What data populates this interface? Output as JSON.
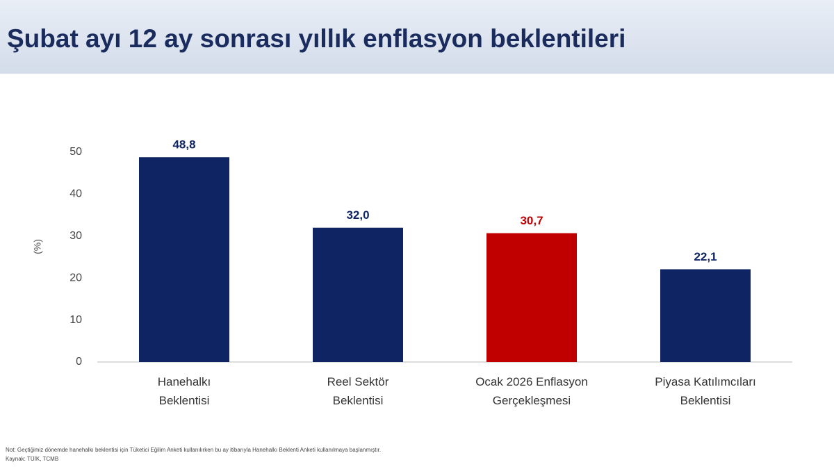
{
  "chart_data": {
    "type": "bar",
    "title": "Şubat ayı 12 ay sonrası yıllık enflasyon beklentileri",
    "y_label": "(%)",
    "categories": [
      "Hanehalkı Beklentisi",
      "Reel Sektör Beklentisi",
      "Ocak 2026 Enflasyon Gerçekleşmesi",
      "Piyasa Katılımcıları Beklentisi"
    ],
    "values": [
      48.8,
      32.0,
      30.7,
      22.1
    ],
    "value_labels": [
      "48,8",
      "32,0",
      "30,7",
      "22,1"
    ],
    "colors": [
      "#0f2462",
      "#0f2462",
      "#c00000",
      "#0f2462"
    ],
    "ylim": [
      0,
      50
    ],
    "yticks": [
      0,
      10,
      20,
      30,
      40,
      50
    ],
    "grid": false,
    "notes": [
      "Not: Geçtiğimiz dönemde hanehalkı beklentisi için Tüketici Eğilim Anketi kullanılırken bu ay itibarıyla Hanehalkı Beklenti Anketi kullanılmaya başlanmıştır.",
      "Kaynak: TÜİK, TCMB"
    ]
  }
}
